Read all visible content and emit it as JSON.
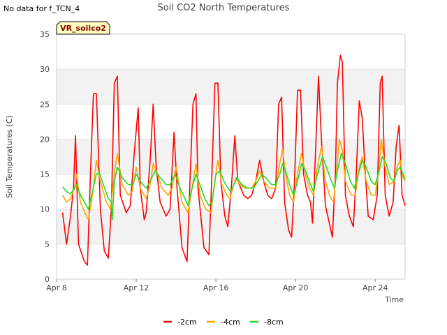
{
  "note": "No data for f_TCN_4",
  "chart_data": {
    "type": "line",
    "title": "Soil CO2 North Temperatures",
    "xlabel": "Time",
    "ylabel": "Soil Temperatures (C)",
    "ylim": [
      0,
      35
    ],
    "yticks": [
      0,
      5,
      10,
      15,
      20,
      25,
      30,
      35
    ],
    "xlim": [
      8.0,
      25.5
    ],
    "xticks": [
      {
        "label": "Apr 8",
        "value": 8
      },
      {
        "label": "Apr 12",
        "value": 12
      },
      {
        "label": "Apr 16",
        "value": 16
      },
      {
        "label": "Apr 20",
        "value": 20
      },
      {
        "label": "Apr 24",
        "value": 24
      }
    ],
    "grid": "horizontal bands",
    "legend_position": "bottom-center",
    "site_badge": "VR_soilco2",
    "series": [
      {
        "name": "-2cm",
        "color": "#ff0000",
        "points": [
          [
            8.3,
            9.5
          ],
          [
            8.5,
            5
          ],
          [
            8.7,
            9
          ],
          [
            8.85,
            13
          ],
          [
            8.95,
            20.5
          ],
          [
            9.1,
            5
          ],
          [
            9.4,
            2.5
          ],
          [
            9.55,
            2
          ],
          [
            9.7,
            15
          ],
          [
            9.85,
            26.5
          ],
          [
            10.0,
            26.5
          ],
          [
            10.2,
            10
          ],
          [
            10.4,
            4
          ],
          [
            10.6,
            3
          ],
          [
            10.75,
            10
          ],
          [
            10.9,
            28
          ],
          [
            11.05,
            29
          ],
          [
            11.2,
            12
          ],
          [
            11.5,
            9.5
          ],
          [
            11.7,
            10.5
          ],
          [
            11.9,
            18
          ],
          [
            12.1,
            24.5
          ],
          [
            12.2,
            13
          ],
          [
            12.4,
            8.5
          ],
          [
            12.5,
            9.5
          ],
          [
            12.7,
            17
          ],
          [
            12.85,
            25
          ],
          [
            13.0,
            16
          ],
          [
            13.2,
            11
          ],
          [
            13.5,
            9
          ],
          [
            13.7,
            10
          ],
          [
            13.9,
            21
          ],
          [
            14.05,
            13
          ],
          [
            14.3,
            4.5
          ],
          [
            14.55,
            2.5
          ],
          [
            14.7,
            14
          ],
          [
            14.85,
            25
          ],
          [
            15.0,
            26.5
          ],
          [
            15.1,
            13
          ],
          [
            15.4,
            4.5
          ],
          [
            15.65,
            3.5
          ],
          [
            15.8,
            15
          ],
          [
            15.95,
            28
          ],
          [
            16.1,
            28
          ],
          [
            16.25,
            14
          ],
          [
            16.45,
            9
          ],
          [
            16.6,
            7.5
          ],
          [
            16.8,
            14
          ],
          [
            16.95,
            20.5
          ],
          [
            17.1,
            14
          ],
          [
            17.4,
            12
          ],
          [
            17.6,
            11.5
          ],
          [
            17.8,
            12
          ],
          [
            18.0,
            14
          ],
          [
            18.2,
            17
          ],
          [
            18.4,
            14
          ],
          [
            18.6,
            12
          ],
          [
            18.8,
            11.5
          ],
          [
            19.0,
            13
          ],
          [
            19.15,
            25
          ],
          [
            19.3,
            26
          ],
          [
            19.45,
            11
          ],
          [
            19.65,
            7
          ],
          [
            19.8,
            6
          ],
          [
            19.95,
            14
          ],
          [
            20.1,
            27
          ],
          [
            20.25,
            27
          ],
          [
            20.4,
            15
          ],
          [
            20.6,
            12
          ],
          [
            20.75,
            11
          ],
          [
            20.85,
            8
          ],
          [
            21.0,
            18
          ],
          [
            21.15,
            29
          ],
          [
            21.3,
            20
          ],
          [
            21.5,
            10.5
          ],
          [
            21.7,
            8
          ],
          [
            21.85,
            6
          ],
          [
            22.0,
            15
          ],
          [
            22.1,
            28
          ],
          [
            22.25,
            32
          ],
          [
            22.35,
            31
          ],
          [
            22.5,
            12
          ],
          [
            22.7,
            9
          ],
          [
            22.9,
            7.5
          ],
          [
            23.05,
            15
          ],
          [
            23.2,
            25.5
          ],
          [
            23.35,
            23
          ],
          [
            23.5,
            15
          ],
          [
            23.65,
            9
          ],
          [
            23.9,
            8.5
          ],
          [
            24.1,
            12
          ],
          [
            24.25,
            28
          ],
          [
            24.35,
            29
          ],
          [
            24.5,
            12
          ],
          [
            24.7,
            9
          ],
          [
            24.9,
            11
          ],
          [
            25.05,
            19
          ],
          [
            25.2,
            22
          ],
          [
            25.35,
            12
          ],
          [
            25.5,
            10.5
          ]
        ]
      },
      {
        "name": "-4cm",
        "color": "#ffa500",
        "points": [
          [
            8.3,
            12
          ],
          [
            8.5,
            11
          ],
          [
            8.7,
            11.5
          ],
          [
            8.9,
            13
          ],
          [
            9.0,
            15
          ],
          [
            9.2,
            11
          ],
          [
            9.5,
            9
          ],
          [
            9.6,
            8.5
          ],
          [
            9.8,
            12
          ],
          [
            10.0,
            17
          ],
          [
            10.2,
            14
          ],
          [
            10.5,
            11
          ],
          [
            10.7,
            10
          ],
          [
            10.9,
            15
          ],
          [
            11.05,
            18
          ],
          [
            11.3,
            13.5
          ],
          [
            11.6,
            12
          ],
          [
            11.8,
            12.5
          ],
          [
            12.0,
            16
          ],
          [
            12.2,
            13
          ],
          [
            12.5,
            11.5
          ],
          [
            12.7,
            13.5
          ],
          [
            12.85,
            16.5
          ],
          [
            13.0,
            15.5
          ],
          [
            13.3,
            13
          ],
          [
            13.6,
            12
          ],
          [
            13.8,
            13
          ],
          [
            14.0,
            16
          ],
          [
            14.3,
            11
          ],
          [
            14.6,
            9.5
          ],
          [
            14.8,
            13
          ],
          [
            15.0,
            16.5
          ],
          [
            15.2,
            12
          ],
          [
            15.5,
            10
          ],
          [
            15.75,
            9.5
          ],
          [
            15.95,
            14
          ],
          [
            16.1,
            17
          ],
          [
            16.3,
            13.5
          ],
          [
            16.55,
            12
          ],
          [
            16.7,
            11.5
          ],
          [
            16.85,
            13
          ],
          [
            17.0,
            14.5
          ],
          [
            17.2,
            13.5
          ],
          [
            17.5,
            13
          ],
          [
            17.8,
            13
          ],
          [
            18.0,
            14
          ],
          [
            18.2,
            15.5
          ],
          [
            18.4,
            14
          ],
          [
            18.7,
            13
          ],
          [
            19.0,
            13
          ],
          [
            19.2,
            16.5
          ],
          [
            19.35,
            18.5
          ],
          [
            19.5,
            15
          ],
          [
            19.7,
            12
          ],
          [
            19.9,
            11
          ],
          [
            20.1,
            15
          ],
          [
            20.3,
            18
          ],
          [
            20.5,
            15
          ],
          [
            20.7,
            13
          ],
          [
            20.9,
            12
          ],
          [
            21.1,
            16
          ],
          [
            21.3,
            19
          ],
          [
            21.5,
            14
          ],
          [
            21.7,
            12
          ],
          [
            21.9,
            11
          ],
          [
            22.05,
            15
          ],
          [
            22.2,
            20
          ],
          [
            22.35,
            18.5
          ],
          [
            22.5,
            14
          ],
          [
            22.8,
            12
          ],
          [
            23.0,
            12
          ],
          [
            23.2,
            16
          ],
          [
            23.35,
            17.5
          ],
          [
            23.55,
            14
          ],
          [
            23.8,
            12
          ],
          [
            24.0,
            12
          ],
          [
            24.2,
            16
          ],
          [
            24.3,
            20
          ],
          [
            24.5,
            16
          ],
          [
            24.7,
            13.5
          ],
          [
            24.95,
            14
          ],
          [
            25.1,
            16
          ],
          [
            25.25,
            17
          ],
          [
            25.4,
            14.5
          ],
          [
            25.5,
            14
          ]
        ]
      },
      {
        "name": "-8cm",
        "color": "#22dd22",
        "points": [
          [
            8.3,
            13.2
          ],
          [
            8.5,
            12.5
          ],
          [
            8.7,
            12.2
          ],
          [
            8.9,
            13
          ],
          [
            9.0,
            13.5
          ],
          [
            9.2,
            12
          ],
          [
            9.4,
            11
          ],
          [
            9.6,
            10
          ],
          [
            9.8,
            12.5
          ],
          [
            10.0,
            15
          ],
          [
            10.15,
            15.2
          ],
          [
            10.35,
            13.5
          ],
          [
            10.6,
            11.5
          ],
          [
            10.75,
            11
          ],
          [
            10.8,
            8.5
          ],
          [
            10.9,
            14
          ],
          [
            11.05,
            16
          ],
          [
            11.3,
            14.5
          ],
          [
            11.6,
            13.5
          ],
          [
            11.8,
            13.5
          ],
          [
            12.0,
            15
          ],
          [
            12.2,
            14
          ],
          [
            12.5,
            13
          ],
          [
            12.7,
            14
          ],
          [
            12.95,
            15.5
          ],
          [
            13.2,
            14.5
          ],
          [
            13.5,
            13.5
          ],
          [
            13.7,
            13.5
          ],
          [
            13.95,
            15
          ],
          [
            14.2,
            13
          ],
          [
            14.45,
            11.5
          ],
          [
            14.6,
            10.5
          ],
          [
            14.8,
            13
          ],
          [
            15.0,
            15
          ],
          [
            15.2,
            13.5
          ],
          [
            15.45,
            11.5
          ],
          [
            15.65,
            10.5
          ],
          [
            15.8,
            11
          ],
          [
            16.0,
            15
          ],
          [
            16.2,
            15.5
          ],
          [
            16.4,
            14
          ],
          [
            16.6,
            13
          ],
          [
            16.75,
            12.5
          ],
          [
            16.9,
            13.5
          ],
          [
            17.05,
            14.5
          ],
          [
            17.3,
            13.5
          ],
          [
            17.6,
            13
          ],
          [
            17.9,
            13
          ],
          [
            18.1,
            14
          ],
          [
            18.3,
            15
          ],
          [
            18.5,
            14.5
          ],
          [
            18.8,
            13.5
          ],
          [
            19.0,
            13.5
          ],
          [
            19.2,
            15
          ],
          [
            19.35,
            16.5
          ],
          [
            19.5,
            15.5
          ],
          [
            19.7,
            13.5
          ],
          [
            19.9,
            12
          ],
          [
            20.1,
            14
          ],
          [
            20.3,
            16.5
          ],
          [
            20.5,
            15.5
          ],
          [
            20.75,
            13.5
          ],
          [
            20.9,
            12.5
          ],
          [
            21.1,
            15
          ],
          [
            21.35,
            17.5
          ],
          [
            21.55,
            16
          ],
          [
            21.8,
            14
          ],
          [
            21.95,
            13
          ],
          [
            22.1,
            15.5
          ],
          [
            22.3,
            18
          ],
          [
            22.5,
            16.5
          ],
          [
            22.75,
            14
          ],
          [
            22.95,
            13
          ],
          [
            23.15,
            15
          ],
          [
            23.35,
            17
          ],
          [
            23.55,
            16
          ],
          [
            23.8,
            14
          ],
          [
            24.0,
            13.5
          ],
          [
            24.2,
            15.5
          ],
          [
            24.35,
            17.5
          ],
          [
            24.55,
            16.5
          ],
          [
            24.75,
            14.5
          ],
          [
            24.95,
            14
          ],
          [
            25.1,
            15.5
          ],
          [
            25.25,
            16
          ],
          [
            25.4,
            15
          ],
          [
            25.5,
            14.3
          ]
        ]
      }
    ]
  }
}
